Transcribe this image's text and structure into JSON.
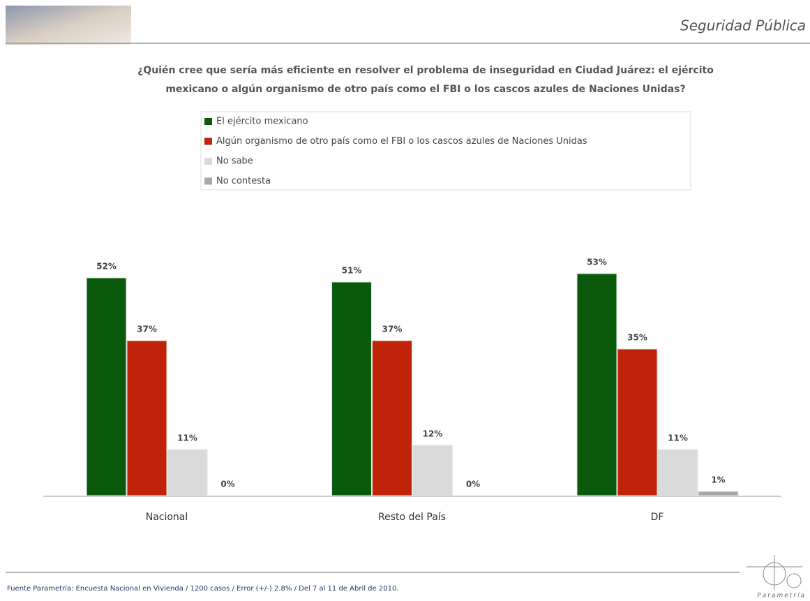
{
  "chart_data": {
    "type": "bar",
    "section": "Seguridad Pública",
    "title": [
      "¿Quién cree que sería más eficiente en resolver el problema de inseguridad en Ciudad Juárez: el ejército",
      "mexicano o algún organismo de otro país como el FBI o los cascos azules de Naciones Unidas?"
    ],
    "categories": [
      "Nacional",
      "Resto del País",
      "DF"
    ],
    "series": [
      {
        "name": "El ejército mexicano",
        "color": "#0b5a0b",
        "values": [
          52,
          51,
          53
        ],
        "value_labels": [
          "52%",
          "51%",
          "53%"
        ]
      },
      {
        "name": "Algún organismo de otro país como el FBI o los cascos azules de Naciones Unidas",
        "color": "#c0220a",
        "values": [
          37,
          37,
          35
        ],
        "value_labels": [
          "37%",
          "37%",
          "35%"
        ]
      },
      {
        "name": "No sabe",
        "color": "#dadada",
        "values": [
          11,
          12,
          11
        ],
        "value_labels": [
          "11%",
          "12%",
          "11%"
        ]
      },
      {
        "name": "No contesta",
        "color": "#a8a8a8",
        "values": [
          0,
          0,
          1
        ],
        "value_labels": [
          "0%",
          "0%",
          "1%"
        ]
      }
    ],
    "source": "Fuente Parametría: Encuesta Nacional en Vivienda / 1200 casos / Error (+/-) 2.8% / Del 7 al 11 de Abril de 2010.",
    "logo_text": "Parametría"
  }
}
